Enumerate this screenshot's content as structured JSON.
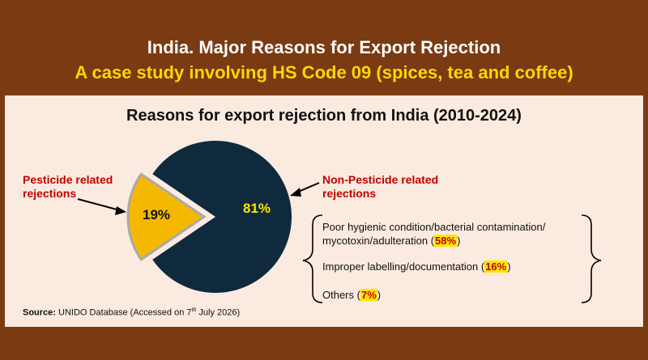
{
  "header": {
    "title": "India. Major Reasons for Export Rejection",
    "subtitle": "A case study involving HS Code 09 (spices, tea and coffee)"
  },
  "chart_data": {
    "type": "pie",
    "title": "Reasons for export rejection from India (2010-2024)",
    "slices": [
      {
        "label": "Non-Pesticide related rejections",
        "value": 81,
        "display": "81%",
        "color": "#0f2a3d"
      },
      {
        "label": "Pesticide related rejections",
        "value": 19,
        "display": "19%",
        "color": "#f5b800"
      }
    ],
    "breakdown": [
      {
        "line1": "Poor hygienic condition/bacterial contamination/",
        "line2": "mycotoxin/adulteration",
        "pct": "58%"
      },
      {
        "line1": "Improper labelling/documentation",
        "pct": "16%"
      },
      {
        "line1": "Others",
        "pct": "7%"
      }
    ]
  },
  "labels": {
    "pesticide_1": "Pesticide related",
    "pesticide_2": "rejections",
    "nonpesticide_1": "Non-Pesticide related",
    "nonpesticide_2": "rejections"
  },
  "source": {
    "label": "Source:",
    "text_before": "UNIDO Database (Accessed on 7",
    "sup": "th",
    "text_after": "July 2026)"
  }
}
